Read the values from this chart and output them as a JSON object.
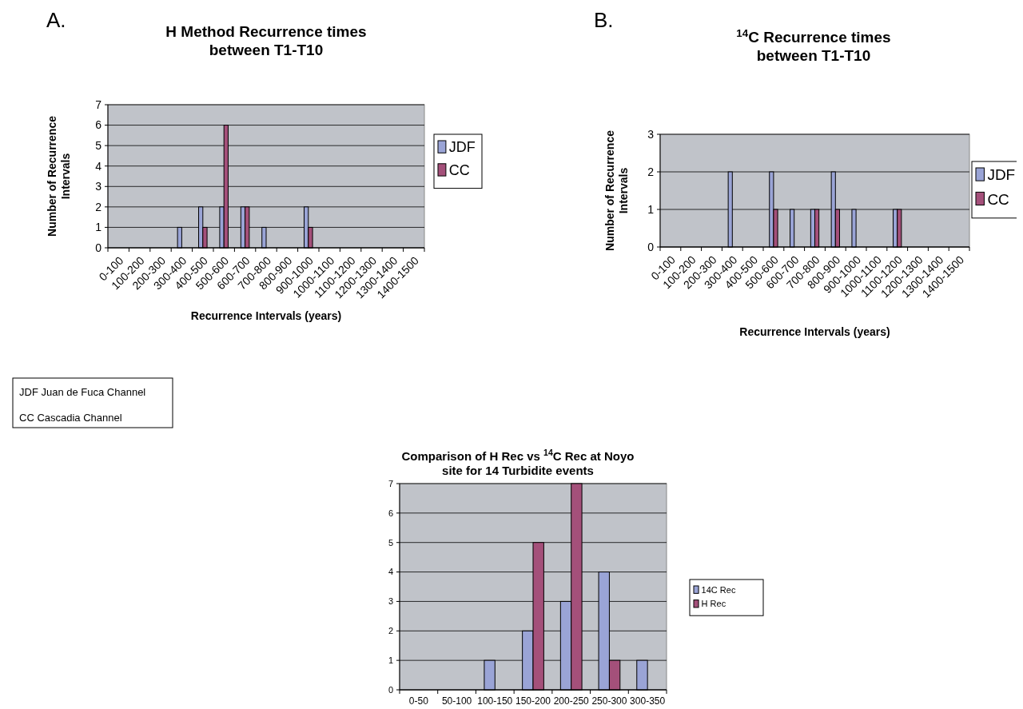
{
  "chart_data": [
    {
      "type": "bar",
      "title": "H Method Recurrence times\nbetween T1-T10",
      "xlabel": "Recurrence Intervals (years)",
      "ylabel": "Number of Recurrence\nIntervals",
      "categories": [
        "0-100",
        "100-200",
        "200-300",
        "300-400",
        "400-500",
        "500-600",
        "600-700",
        "700-800",
        "800-900",
        "900-1000",
        "1000-1100",
        "1100-1200",
        "1200-1300",
        "1300-1400",
        "1400-1500"
      ],
      "series": [
        {
          "name": "JDF",
          "color": "#9aa4d6",
          "values": [
            0,
            0,
            0,
            1,
            2,
            2,
            2,
            1,
            0,
            2,
            0,
            0,
            0,
            0,
            0
          ]
        },
        {
          "name": "CC",
          "color": "#a4507a",
          "values": [
            0,
            0,
            0,
            0,
            1,
            6,
            2,
            0,
            0,
            1,
            0,
            0,
            0,
            0,
            0
          ]
        }
      ],
      "ylim": [
        0,
        7
      ],
      "yticks": [
        0,
        1,
        2,
        3,
        4,
        5,
        6,
        7
      ],
      "grid": "y",
      "legend": "right",
      "annotations": [
        "A.",
        "JDF Juan de Fuca Channel",
        "CC  Cascadia Channel"
      ]
    },
    {
      "type": "bar",
      "title": "$^{14}$C Recurrence times\nbetween T1-T10",
      "xlabel": "Recurrence Intervals (years)",
      "ylabel": "Number of Recurrence\nIntervals",
      "categories": [
        "0-100",
        "100-200",
        "200-300",
        "300-400",
        "400-500",
        "500-600",
        "600-700",
        "700-800",
        "800-900",
        "900-1000",
        "1000-1100",
        "1100-1200",
        "1200-1300",
        "1300-1400",
        "1400-1500"
      ],
      "series": [
        {
          "name": "JDF",
          "color": "#9aa4d6",
          "values": [
            0,
            0,
            0,
            2,
            0,
            2,
            1,
            1,
            2,
            1,
            0,
            1,
            0,
            0,
            0
          ]
        },
        {
          "name": "CC",
          "color": "#a4507a",
          "values": [
            0,
            0,
            0,
            0,
            0,
            1,
            0,
            1,
            1,
            0,
            0,
            1,
            0,
            0,
            0
          ]
        }
      ],
      "ylim": [
        0,
        3
      ],
      "yticks": [
        0,
        1,
        2,
        3
      ],
      "grid": "y",
      "legend": "right",
      "annotations": [
        "B."
      ]
    },
    {
      "type": "bar",
      "title": "Comparison of H  Rec vs $^{14}$C Rec at Noyo\nsite for 14 Turbidite  events",
      "categories": [
        "0-50",
        "50-100",
        "100-150",
        "150-200",
        "200-250",
        "250-300",
        "300-350"
      ],
      "series": [
        {
          "name": "14C Rec",
          "color": "#9aa4d6",
          "values": [
            0,
            0,
            1,
            2,
            3,
            4,
            1
          ]
        },
        {
          "name": "H Rec",
          "color": "#a4507a",
          "values": [
            0,
            0,
            0,
            5,
            7,
            1,
            0
          ]
        }
      ],
      "ylim": [
        0,
        7
      ],
      "yticks": [
        0,
        1,
        2,
        3,
        4,
        5,
        6,
        7
      ],
      "grid": "y",
      "legend": "right"
    }
  ]
}
